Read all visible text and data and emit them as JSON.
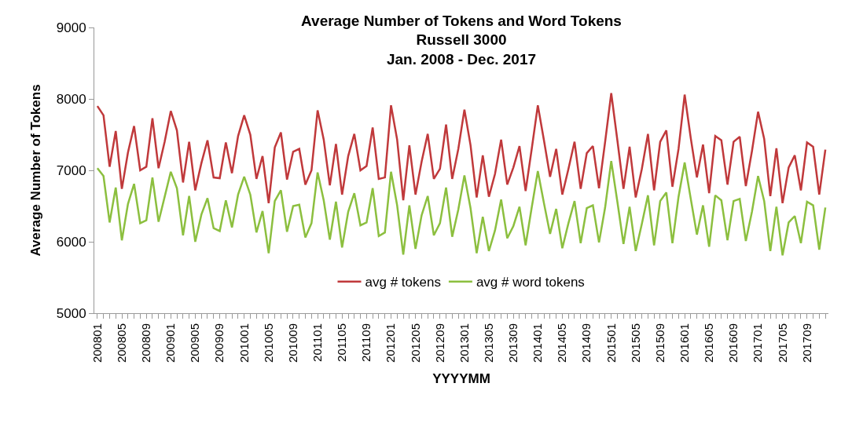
{
  "chart_data": {
    "type": "line",
    "title": "Average Number of Tokens and Word Tokens\nRussell 3000\nJan. 2008 - Dec. 2017",
    "xlabel": "YYYYMM",
    "ylabel": "Average Number of Tokens",
    "categories": [
      "200801",
      null,
      null,
      null,
      "200805",
      null,
      null,
      null,
      "200809",
      null,
      null,
      null,
      "200901",
      null,
      null,
      null,
      "200905",
      null,
      null,
      null,
      "200909",
      null,
      null,
      null,
      "201001",
      null,
      null,
      null,
      "201005",
      null,
      null,
      null,
      "201009",
      null,
      null,
      null,
      "201101",
      null,
      null,
      null,
      "201105",
      null,
      null,
      null,
      "201109",
      null,
      null,
      null,
      "201201",
      null,
      null,
      null,
      "201205",
      null,
      null,
      null,
      "201209",
      null,
      null,
      null,
      "201301",
      null,
      null,
      null,
      "201305",
      null,
      null,
      null,
      "201309",
      null,
      null,
      null,
      "201401",
      null,
      null,
      null,
      "201405",
      null,
      null,
      null,
      "201409",
      null,
      null,
      null,
      "201501",
      null,
      null,
      null,
      "201505",
      null,
      null,
      null,
      "201509",
      null,
      null,
      null,
      "201601",
      null,
      null,
      null,
      "201605",
      null,
      null,
      null,
      "201609",
      null,
      null,
      null,
      "201701",
      null,
      null,
      null,
      "201705",
      null,
      null,
      null,
      "201709",
      null,
      null,
      null
    ],
    "series": [
      {
        "name": "avg # tokens",
        "color": "#c0393b",
        "values": [
          7900,
          7770,
          7050,
          7550,
          6740,
          7250,
          7620,
          7000,
          7050,
          7730,
          7030,
          7400,
          7830,
          7560,
          6830,
          7400,
          6720,
          7100,
          7420,
          6900,
          6890,
          7390,
          6960,
          7480,
          7770,
          7500,
          6880,
          7200,
          6540,
          7320,
          7530,
          6870,
          7260,
          7300,
          6800,
          7000,
          7840,
          7430,
          6790,
          7370,
          6660,
          7200,
          7510,
          7000,
          7060,
          7600,
          6880,
          6900,
          7910,
          7430,
          6580,
          7350,
          6660,
          7120,
          7510,
          6880,
          7020,
          7640,
          6880,
          7300,
          7850,
          7350,
          6620,
          7210,
          6630,
          6950,
          7430,
          6800,
          7040,
          7340,
          6710,
          7300,
          7910,
          7420,
          6910,
          7300,
          6660,
          7020,
          7400,
          6740,
          7240,
          7340,
          6750,
          7400,
          8080,
          7420,
          6740,
          7330,
          6620,
          7020,
          7510,
          6720,
          7400,
          7560,
          6770,
          7300,
          8060,
          7450,
          6900,
          7360,
          6680,
          7480,
          7420,
          6800,
          7400,
          7470,
          6780,
          7270,
          7820,
          7440,
          6640,
          7310,
          6540,
          7040,
          7210,
          6720,
          7390,
          7330,
          6660,
          7290
        ]
      },
      {
        "name": "avg # word tokens",
        "color": "#8cbf3f",
        "values": [
          7030,
          6920,
          6270,
          6760,
          6020,
          6530,
          6810,
          6260,
          6300,
          6900,
          6280,
          6630,
          6980,
          6750,
          6090,
          6640,
          6000,
          6380,
          6610,
          6190,
          6150,
          6580,
          6200,
          6660,
          6910,
          6660,
          6130,
          6430,
          5840,
          6570,
          6720,
          6140,
          6500,
          6520,
          6060,
          6260,
          6970,
          6580,
          6030,
          6560,
          5920,
          6420,
          6680,
          6230,
          6270,
          6750,
          6080,
          6130,
          6980,
          6510,
          5820,
          6510,
          5900,
          6370,
          6640,
          6090,
          6260,
          6760,
          6070,
          6450,
          6930,
          6470,
          5840,
          6350,
          5870,
          6160,
          6590,
          6050,
          6220,
          6490,
          5950,
          6480,
          6990,
          6540,
          6110,
          6460,
          5910,
          6260,
          6570,
          5980,
          6470,
          6510,
          5990,
          6480,
          7130,
          6560,
          5970,
          6490,
          5870,
          6250,
          6650,
          5950,
          6570,
          6690,
          5980,
          6630,
          7110,
          6600,
          6100,
          6510,
          5930,
          6650,
          6580,
          6020,
          6570,
          6600,
          6010,
          6420,
          6920,
          6570,
          5870,
          6490,
          5810,
          6270,
          6360,
          5980,
          6560,
          6510,
          5890,
          6480
        ]
      }
    ],
    "ylim": [
      5000,
      9000
    ],
    "yticks": [
      5000,
      6000,
      7000,
      8000,
      9000
    ],
    "grid": false,
    "legend": "bottom",
    "line_style": "solid",
    "marker": "none"
  }
}
